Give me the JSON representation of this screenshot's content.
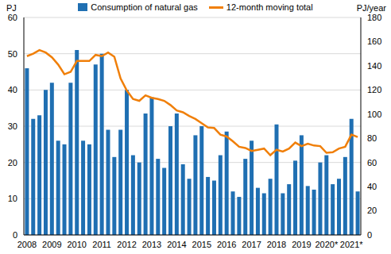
{
  "chart_data": {
    "type": "bar",
    "categories": [
      "2008",
      null,
      null,
      null,
      "2009",
      null,
      null,
      null,
      "2010",
      null,
      null,
      null,
      "2011",
      null,
      null,
      null,
      "2012",
      null,
      null,
      null,
      "2013",
      null,
      null,
      null,
      "2014",
      null,
      null,
      null,
      "2015",
      null,
      null,
      null,
      "2016",
      null,
      null,
      null,
      "2017",
      null,
      null,
      null,
      "2018",
      null,
      null,
      null,
      "2019",
      null,
      null,
      null,
      "2020*",
      null,
      null,
      null,
      "2021*",
      null
    ],
    "series": [
      {
        "name": "Consumption of natural gas",
        "type": "bar",
        "color": "#1f6fb2",
        "values": [
          46,
          32,
          33,
          40,
          42,
          26,
          25,
          42,
          51,
          26,
          25,
          47,
          50,
          29,
          21.5,
          29,
          40,
          22,
          20,
          33.5,
          38,
          21,
          18.5,
          30,
          33.5,
          19.5,
          15.5,
          27.5,
          30,
          16,
          15,
          22,
          28.5,
          12,
          10.5,
          21,
          26,
          13,
          11.5,
          15.5,
          30.5,
          11.5,
          14,
          20.5,
          27.5,
          13.5,
          12.5,
          20,
          22,
          14,
          15.5,
          21.5,
          32,
          12
        ]
      },
      {
        "name": "12-month moving total",
        "type": "line",
        "axis": "y2",
        "color": "#f07f09",
        "values": [
          148,
          150,
          153,
          151,
          147,
          141,
          133,
          135,
          144,
          144,
          144,
          149,
          148,
          151,
          147.5,
          129.5,
          119.5,
          112.5,
          111,
          115.5,
          113.5,
          112.5,
          111,
          107.5,
          103,
          101.5,
          98.5,
          96,
          92.5,
          89,
          88.5,
          83,
          81.5,
          77.5,
          73,
          72,
          69.5,
          70.5,
          71.5,
          66,
          70.5,
          69,
          71.5,
          76.5,
          73.5,
          75.5,
          74,
          73.5,
          68,
          68.5,
          71.5,
          73,
          83,
          81
        ]
      }
    ],
    "y_label": "PJ",
    "y2_label": "PJ/year",
    "ylim": [
      0,
      60
    ],
    "yticks": [
      0,
      10,
      20,
      30,
      40,
      50,
      60
    ],
    "y2lim": [
      0,
      180
    ],
    "y2ticks": [
      0,
      20,
      40,
      60,
      80,
      100,
      120,
      140,
      160,
      180
    ],
    "grid": true,
    "legend": "top"
  }
}
